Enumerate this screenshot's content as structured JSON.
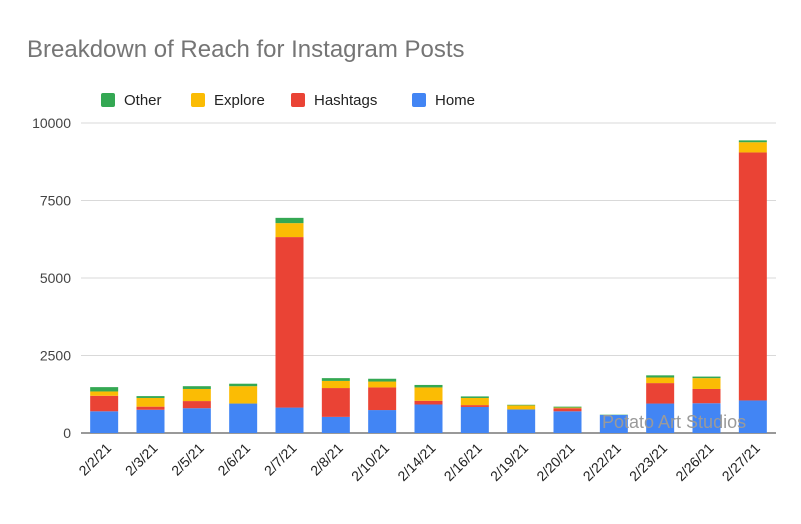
{
  "chart_data": {
    "type": "bar",
    "stacked": true,
    "title": "Breakdown of Reach for Instagram Posts",
    "categories": [
      "2/2/21",
      "2/3/21",
      "2/5/21",
      "2/6/21",
      "2/7/21",
      "2/8/21",
      "2/10/21",
      "2/14/21",
      "2/16/21",
      "2/19/21",
      "2/20/21",
      "2/22/21",
      "2/23/21",
      "2/26/21",
      "2/27/21"
    ],
    "series": [
      {
        "name": "Home",
        "color": "#4285F4",
        "values": [
          700,
          750,
          800,
          950,
          820,
          520,
          740,
          920,
          840,
          760,
          700,
          580,
          950,
          960,
          1050
        ]
      },
      {
        "name": "Hashtags",
        "color": "#EA4335",
        "values": [
          500,
          100,
          230,
          0,
          5500,
          930,
          730,
          120,
          60,
          0,
          100,
          0,
          660,
          460,
          8000
        ]
      },
      {
        "name": "Explore",
        "color": "#FBBC04",
        "values": [
          140,
          280,
          390,
          560,
          450,
          230,
          190,
          430,
          230,
          130,
          20,
          0,
          180,
          350,
          330
        ]
      },
      {
        "name": "Other",
        "color": "#34A853",
        "values": [
          140,
          60,
          90,
          80,
          170,
          90,
          90,
          80,
          50,
          20,
          30,
          10,
          70,
          50,
          60
        ]
      }
    ],
    "legend_order": [
      "Other",
      "Explore",
      "Hashtags",
      "Home"
    ],
    "legend_position": "top-left",
    "ylim": [
      0,
      10000
    ],
    "yticks": [
      0,
      2500,
      5000,
      7500,
      10000
    ],
    "grid": true
  },
  "watermark": "Potato Art Studios"
}
